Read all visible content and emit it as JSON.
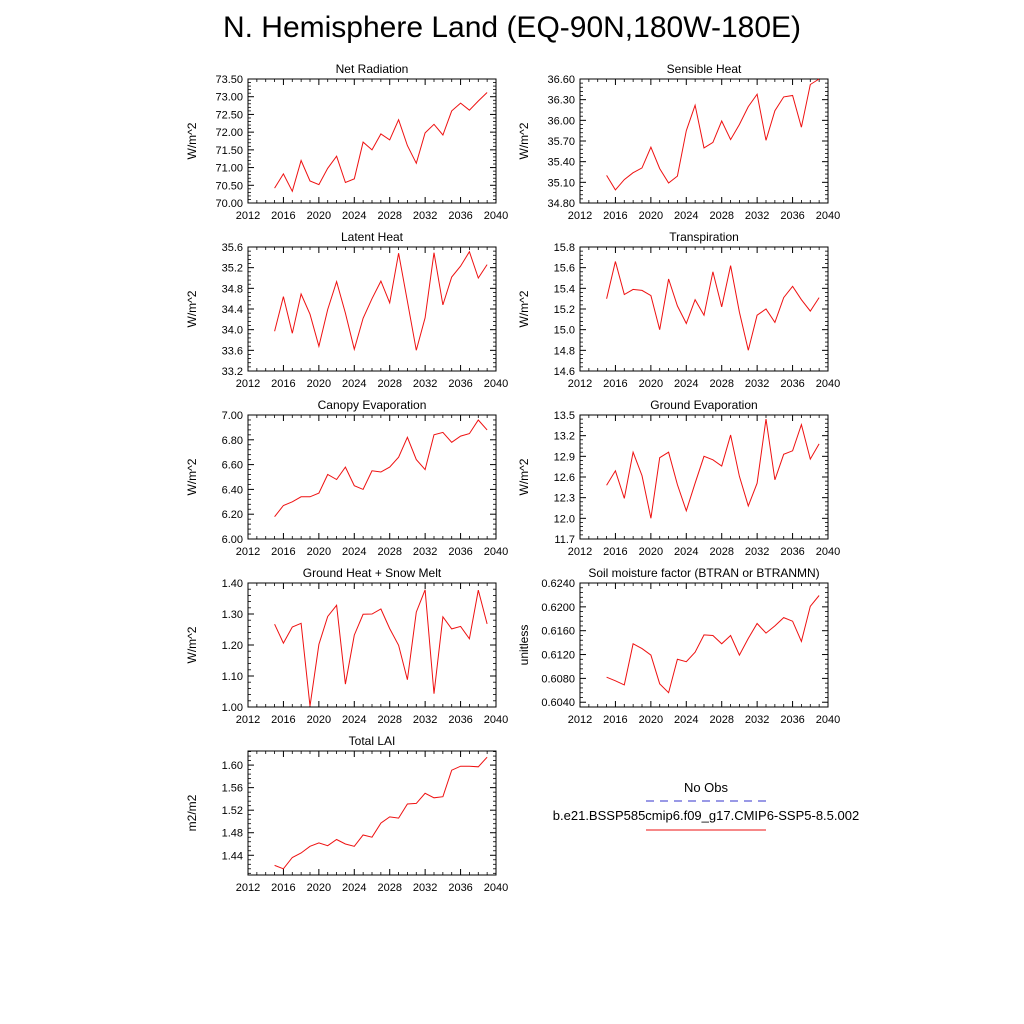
{
  "figure": {
    "title": "N. Hemisphere Land (EQ-90N,180W-180E)"
  },
  "legend": {
    "entries": [
      {
        "label": "No Obs",
        "color": "#3333cc",
        "style": "dashed"
      },
      {
        "label": "b.e21.BSSP585cmip6.f09_g17.CMIP6-SSP5-8.5.002",
        "color": "#ee1111",
        "style": "solid"
      }
    ]
  },
  "chart_data": [
    {
      "type": "line",
      "title": "Net Radiation",
      "ylabel": "W/m^2",
      "xlim": [
        2012,
        2040
      ],
      "xticks": [
        "2012",
        "2016",
        "2020",
        "2024",
        "2028",
        "2032",
        "2036",
        "2040"
      ],
      "ylim": [
        70.0,
        73.5
      ],
      "yticks": [
        "70.00",
        "70.50",
        "71.00",
        "71.50",
        "72.00",
        "72.50",
        "73.00",
        "73.50"
      ],
      "x": [
        2015,
        2016,
        2017,
        2018,
        2019,
        2020,
        2021,
        2022,
        2023,
        2024,
        2025,
        2026,
        2027,
        2028,
        2029,
        2030,
        2031,
        2032,
        2033,
        2034,
        2035,
        2036,
        2037,
        2038,
        2039
      ],
      "series": [
        {
          "color": "#ee1111",
          "values": [
            70.42,
            70.82,
            70.33,
            71.2,
            70.62,
            70.52,
            70.98,
            71.32,
            70.58,
            70.68,
            71.72,
            71.5,
            71.95,
            71.78,
            72.35,
            71.62,
            71.12,
            71.98,
            72.22,
            71.92,
            72.6,
            72.82,
            72.62,
            72.88,
            73.12
          ]
        }
      ]
    },
    {
      "type": "line",
      "title": "Sensible Heat",
      "ylabel": "W/m^2",
      "xlim": [
        2012,
        2040
      ],
      "xticks": [
        "2012",
        "2016",
        "2020",
        "2024",
        "2028",
        "2032",
        "2036",
        "2040"
      ],
      "ylim": [
        34.8,
        36.6
      ],
      "yticks": [
        "34.80",
        "35.10",
        "35.40",
        "35.70",
        "36.00",
        "36.30",
        "36.60"
      ],
      "x": [
        2015,
        2016,
        2017,
        2018,
        2019,
        2020,
        2021,
        2022,
        2023,
        2024,
        2025,
        2026,
        2027,
        2028,
        2029,
        2030,
        2031,
        2032,
        2033,
        2034,
        2035,
        2036,
        2037,
        2038,
        2039
      ],
      "series": [
        {
          "color": "#ee1111",
          "values": [
            35.2,
            34.99,
            35.14,
            35.24,
            35.31,
            35.61,
            35.3,
            35.09,
            35.19,
            35.85,
            36.22,
            35.6,
            35.68,
            35.99,
            35.72,
            35.94,
            36.2,
            36.38,
            35.71,
            36.14,
            36.34,
            36.36,
            35.9,
            36.52,
            36.6
          ]
        }
      ]
    },
    {
      "type": "line",
      "title": "Latent Heat",
      "ylabel": "W/m^2",
      "xlim": [
        2012,
        2040
      ],
      "xticks": [
        "2012",
        "2016",
        "2020",
        "2024",
        "2028",
        "2032",
        "2036",
        "2040"
      ],
      "ylim": [
        33.2,
        35.6
      ],
      "yticks": [
        "33.2",
        "33.6",
        "34.0",
        "34.4",
        "34.8",
        "35.2",
        "35.6"
      ],
      "x": [
        2015,
        2016,
        2017,
        2018,
        2019,
        2020,
        2021,
        2022,
        2023,
        2024,
        2025,
        2026,
        2027,
        2028,
        2029,
        2030,
        2031,
        2032,
        2033,
        2034,
        2035,
        2036,
        2037,
        2038,
        2039
      ],
      "series": [
        {
          "color": "#ee1111",
          "values": [
            33.97,
            34.64,
            33.93,
            34.69,
            34.3,
            33.68,
            34.39,
            34.93,
            34.32,
            33.62,
            34.22,
            34.6,
            34.94,
            34.52,
            35.48,
            34.55,
            33.6,
            34.23,
            35.49,
            34.48,
            35.02,
            35.23,
            35.51,
            35.0,
            35.26
          ]
        }
      ]
    },
    {
      "type": "line",
      "title": "Transpiration",
      "ylabel": "W/m^2",
      "xlim": [
        2012,
        2040
      ],
      "xticks": [
        "2012",
        "2016",
        "2020",
        "2024",
        "2028",
        "2032",
        "2036",
        "2040"
      ],
      "ylim": [
        14.6,
        15.8
      ],
      "yticks": [
        "14.6",
        "14.8",
        "15.0",
        "15.2",
        "15.4",
        "15.6",
        "15.8"
      ],
      "x": [
        2015,
        2016,
        2017,
        2018,
        2019,
        2020,
        2021,
        2022,
        2023,
        2024,
        2025,
        2026,
        2027,
        2028,
        2029,
        2030,
        2031,
        2032,
        2033,
        2034,
        2035,
        2036,
        2037,
        2038,
        2039
      ],
      "series": [
        {
          "color": "#ee1111",
          "values": [
            15.3,
            15.66,
            15.34,
            15.39,
            15.38,
            15.33,
            15.0,
            15.49,
            15.23,
            15.06,
            15.29,
            15.14,
            15.56,
            15.22,
            15.62,
            15.17,
            14.8,
            15.14,
            15.2,
            15.07,
            15.31,
            15.42,
            15.29,
            15.18,
            15.31
          ]
        }
      ]
    },
    {
      "type": "line",
      "title": "Canopy Evaporation",
      "ylabel": "W/m^2",
      "xlim": [
        2012,
        2040
      ],
      "xticks": [
        "2012",
        "2016",
        "2020",
        "2024",
        "2028",
        "2032",
        "2036",
        "2040"
      ],
      "ylim": [
        6.0,
        7.0
      ],
      "yticks": [
        "6.00",
        "6.20",
        "6.40",
        "6.60",
        "6.80",
        "7.00"
      ],
      "x": [
        2015,
        2016,
        2017,
        2018,
        2019,
        2020,
        2021,
        2022,
        2023,
        2024,
        2025,
        2026,
        2027,
        2028,
        2029,
        2030,
        2031,
        2032,
        2033,
        2034,
        2035,
        2036,
        2037,
        2038,
        2039
      ],
      "series": [
        {
          "color": "#ee1111",
          "values": [
            6.18,
            6.27,
            6.3,
            6.34,
            6.34,
            6.37,
            6.52,
            6.48,
            6.58,
            6.43,
            6.4,
            6.55,
            6.54,
            6.58,
            6.66,
            6.82,
            6.64,
            6.56,
            6.84,
            6.86,
            6.78,
            6.83,
            6.85,
            6.96,
            6.88
          ]
        }
      ]
    },
    {
      "type": "line",
      "title": "Ground Evaporation",
      "ylabel": "W/m^2",
      "xlim": [
        2012,
        2040
      ],
      "xticks": [
        "2012",
        "2016",
        "2020",
        "2024",
        "2028",
        "2032",
        "2036",
        "2040"
      ],
      "ylim": [
        11.7,
        13.5
      ],
      "yticks": [
        "11.7",
        "12.0",
        "12.3",
        "12.6",
        "12.9",
        "13.2",
        "13.5"
      ],
      "x": [
        2015,
        2016,
        2017,
        2018,
        2019,
        2020,
        2021,
        2022,
        2023,
        2024,
        2025,
        2026,
        2027,
        2028,
        2029,
        2030,
        2031,
        2032,
        2033,
        2034,
        2035,
        2036,
        2037,
        2038,
        2039
      ],
      "series": [
        {
          "color": "#ee1111",
          "values": [
            12.48,
            12.69,
            12.29,
            12.96,
            12.62,
            12.0,
            12.88,
            12.96,
            12.49,
            12.11,
            12.51,
            12.9,
            12.85,
            12.76,
            13.21,
            12.61,
            12.18,
            12.51,
            13.44,
            12.56,
            12.93,
            12.98,
            13.36,
            12.86,
            13.08
          ]
        }
      ]
    },
    {
      "type": "line",
      "title": "Ground Heat + Snow Melt",
      "ylabel": "W/m^2",
      "xlim": [
        2012,
        2040
      ],
      "xticks": [
        "2012",
        "2016",
        "2020",
        "2024",
        "2028",
        "2032",
        "2036",
        "2040"
      ],
      "ylim": [
        1.0,
        1.4
      ],
      "yticks": [
        "1.00",
        "1.10",
        "1.20",
        "1.30",
        "1.40"
      ],
      "x": [
        2015,
        2016,
        2017,
        2018,
        2019,
        2020,
        2021,
        2022,
        2023,
        2024,
        2025,
        2026,
        2027,
        2028,
        2029,
        2030,
        2031,
        2032,
        2033,
        2034,
        2035,
        2036,
        2037,
        2038,
        2039
      ],
      "series": [
        {
          "color": "#ee1111",
          "values": [
            1.267,
            1.206,
            1.258,
            1.27,
            1.003,
            1.202,
            1.292,
            1.328,
            1.074,
            1.232,
            1.299,
            1.3,
            1.316,
            1.253,
            1.199,
            1.088,
            1.306,
            1.378,
            1.043,
            1.291,
            1.252,
            1.26,
            1.22,
            1.377,
            1.268
          ]
        }
      ]
    },
    {
      "type": "line",
      "title": "Soil moisture factor (BTRAN or BTRANMN)",
      "ylabel": "unitless",
      "xlim": [
        2012,
        2040
      ],
      "xticks": [
        "2012",
        "2016",
        "2020",
        "2024",
        "2028",
        "2032",
        "2036",
        "2040"
      ],
      "ylim": [
        0.6032,
        0.624
      ],
      "yticks": [
        "0.6040",
        "0.6080",
        "0.6120",
        "0.6160",
        "0.6200",
        "0.6240"
      ],
      "x": [
        2015,
        2016,
        2017,
        2018,
        2019,
        2020,
        2021,
        2022,
        2023,
        2024,
        2025,
        2026,
        2027,
        2028,
        2029,
        2030,
        2031,
        2032,
        2033,
        2034,
        2035,
        2036,
        2037,
        2038,
        2039
      ],
      "series": [
        {
          "color": "#ee1111",
          "values": [
            0.6082,
            0.6076,
            0.6069,
            0.6138,
            0.613,
            0.6119,
            0.6071,
            0.6056,
            0.6112,
            0.6108,
            0.6124,
            0.6153,
            0.6152,
            0.6138,
            0.6152,
            0.6119,
            0.6147,
            0.6172,
            0.6156,
            0.6168,
            0.6182,
            0.6176,
            0.6142,
            0.6201,
            0.6219
          ]
        }
      ]
    },
    {
      "type": "line",
      "title": "Total LAI",
      "ylabel": "m2/m2",
      "xlim": [
        2012,
        2040
      ],
      "xticks": [
        "2012",
        "2016",
        "2020",
        "2024",
        "2028",
        "2032",
        "2036",
        "2040"
      ],
      "ylim": [
        1.405,
        1.625
      ],
      "yticks": [
        "1.44",
        "1.48",
        "1.52",
        "1.56",
        "1.60"
      ],
      "x": [
        2015,
        2016,
        2017,
        2018,
        2019,
        2020,
        2021,
        2022,
        2023,
        2024,
        2025,
        2026,
        2027,
        2028,
        2029,
        2030,
        2031,
        2032,
        2033,
        2034,
        2035,
        2036,
        2037,
        2038,
        2039
      ],
      "series": [
        {
          "color": "#ee1111",
          "values": [
            1.422,
            1.416,
            1.436,
            1.444,
            1.456,
            1.462,
            1.457,
            1.468,
            1.46,
            1.456,
            1.476,
            1.472,
            1.497,
            1.508,
            1.506,
            1.531,
            1.532,
            1.55,
            1.542,
            1.544,
            1.591,
            1.598,
            1.598,
            1.597,
            1.614
          ]
        }
      ]
    }
  ]
}
